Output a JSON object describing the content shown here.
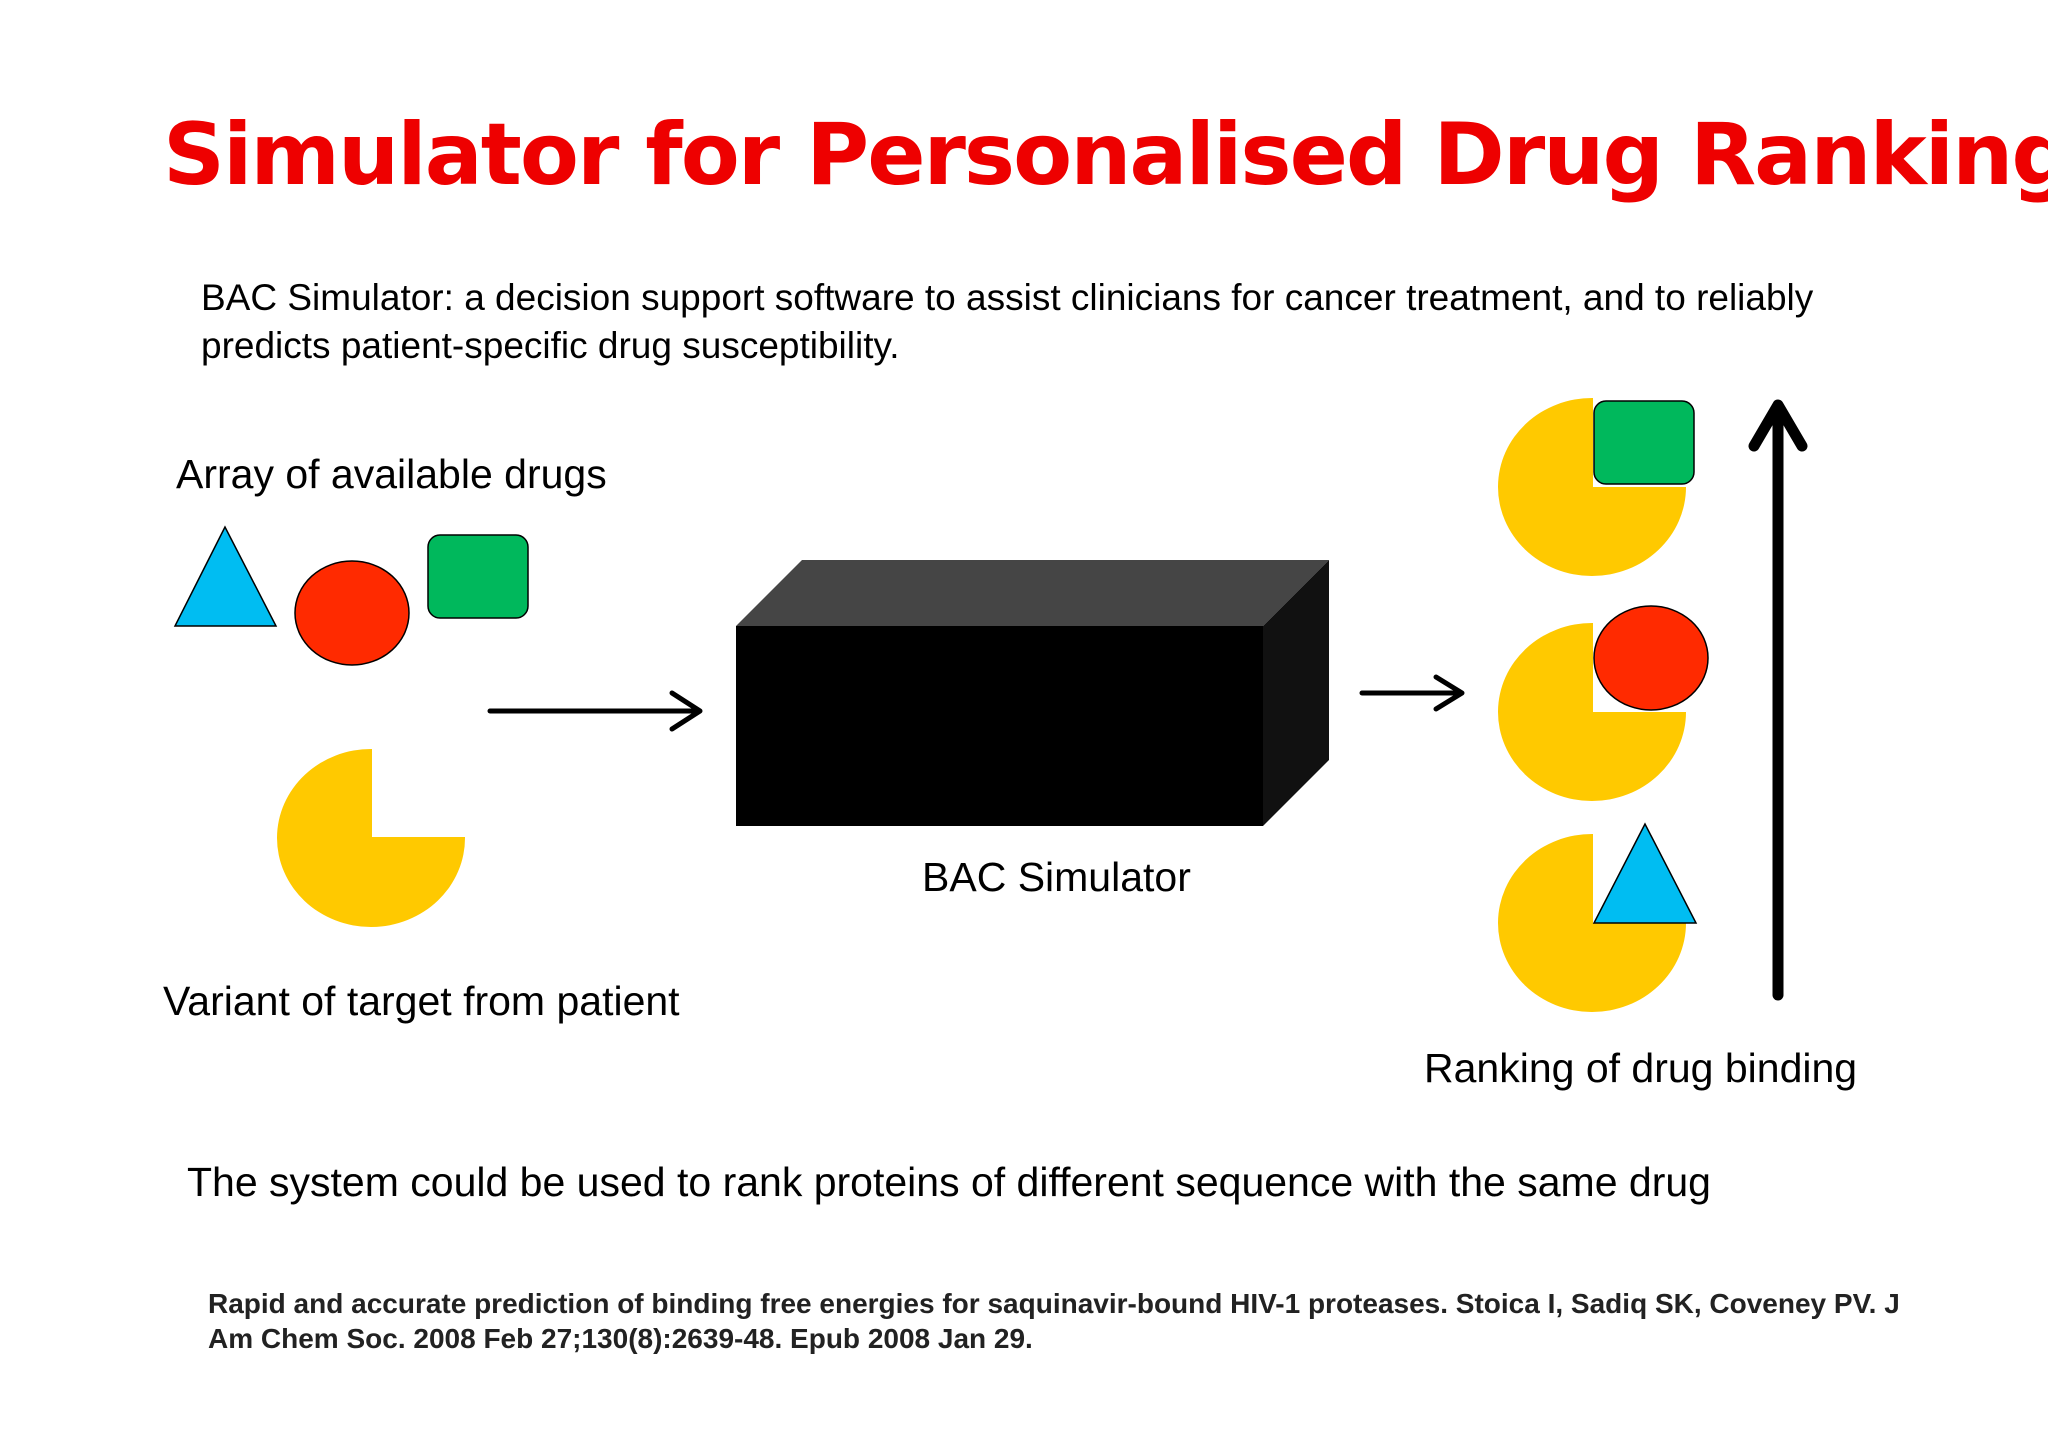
{
  "slide": {
    "title": "Simulator for Personalised Drug Ranking",
    "intro": "BAC Simulator: a decision support software to assist clinicians for cancer treatment, and to reliably predicts patient-specific drug susceptibility.",
    "conclusion": "The system could be used to rank proteins of different sequence with the same drug",
    "reference": "Rapid and accurate prediction of binding free energies for saquinavir-bound HIV-1 proteases. Stoica I, Sadiq SK, Coveney PV. J Am Chem Soc. 2008 Feb 27;130(8):2639-48. Epub 2008 Jan 29."
  },
  "diagram": {
    "drugs_label": "Array of available drugs",
    "variant_label": "Variant of target from patient",
    "simulator_label": "BAC Simulator",
    "ranking_label": "Ranking of drug binding",
    "ranking_order": [
      "green-rectangle",
      "red-circle",
      "blue-triangle"
    ]
  },
  "colors": {
    "title": "#ee0000",
    "triangle": "#00bdf2",
    "circle": "#ff2a00",
    "rectangle": "#00b85c",
    "target": "#ffc900",
    "box_front": "#000000",
    "box_top": "#454545",
    "box_side": "#111111"
  }
}
